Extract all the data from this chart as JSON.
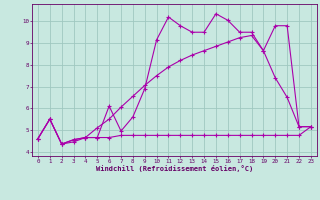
{
  "background_color": "#c8e8e0",
  "line_color": "#aa00aa",
  "grid_color": "#a0c8c0",
  "xlabel": "Windchill (Refroidissement éolien,°C)",
  "xlabel_color": "#660066",
  "tick_color": "#660066",
  "xlim": [
    -0.5,
    23.5
  ],
  "ylim": [
    3.8,
    10.8
  ],
  "yticks": [
    4,
    5,
    6,
    7,
    8,
    9,
    10
  ],
  "xticks": [
    0,
    1,
    2,
    3,
    4,
    5,
    6,
    7,
    8,
    9,
    10,
    11,
    12,
    13,
    14,
    15,
    16,
    17,
    18,
    19,
    20,
    21,
    22,
    23
  ],
  "line1_x": [
    0,
    1,
    2,
    3,
    4,
    5,
    6,
    7,
    8,
    9,
    10,
    11,
    12,
    13,
    14,
    15,
    16,
    17,
    18,
    19,
    20,
    21,
    22,
    23
  ],
  "line1_y": [
    4.6,
    5.5,
    4.35,
    4.55,
    4.65,
    4.65,
    6.1,
    4.95,
    5.6,
    6.9,
    9.15,
    10.2,
    9.8,
    9.5,
    9.5,
    10.35,
    10.05,
    9.5,
    9.5,
    8.65,
    9.8,
    9.8,
    5.15,
    5.15
  ],
  "line2_x": [
    0,
    1,
    2,
    3,
    4,
    5,
    6,
    7,
    8,
    9,
    10,
    11,
    12,
    13,
    14,
    15,
    16,
    17,
    18,
    19,
    20,
    21,
    22,
    23
  ],
  "line2_y": [
    4.6,
    5.5,
    4.35,
    4.55,
    4.65,
    4.65,
    4.65,
    4.75,
    4.75,
    4.75,
    4.75,
    4.75,
    4.75,
    4.75,
    4.75,
    4.75,
    4.75,
    4.75,
    4.75,
    4.75,
    4.75,
    4.75,
    4.75,
    5.15
  ],
  "line3_x": [
    0,
    1,
    2,
    3,
    4,
    5,
    6,
    7,
    8,
    9,
    10,
    11,
    12,
    13,
    14,
    15,
    16,
    17,
    18,
    19,
    20,
    21,
    22,
    23
  ],
  "line3_y": [
    4.6,
    5.5,
    4.35,
    4.45,
    4.65,
    5.1,
    5.5,
    6.05,
    6.55,
    7.05,
    7.5,
    7.9,
    8.2,
    8.45,
    8.65,
    8.85,
    9.05,
    9.25,
    9.35,
    8.65,
    7.4,
    6.5,
    5.15,
    5.15
  ]
}
